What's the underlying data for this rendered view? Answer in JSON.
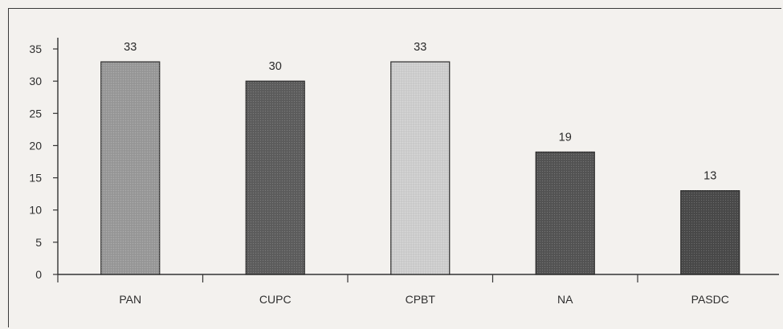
{
  "chart_data": {
    "type": "bar",
    "categories": [
      "PAN",
      "CUPC",
      "CPBT",
      "NA",
      "PASDC"
    ],
    "values": [
      33,
      30,
      33,
      19,
      13
    ],
    "data_labels": [
      "33",
      "30",
      "33",
      "19",
      "13"
    ],
    "title": "",
    "xlabel": "",
    "ylabel": "",
    "ylim": [
      0,
      35
    ],
    "yticks": [
      0,
      5,
      10,
      15,
      20,
      25,
      30,
      35
    ],
    "grid": false,
    "legend": "none",
    "bar_colors": [
      "#9a9a9a",
      "#5e5e5e",
      "#cfcfcf",
      "#555555",
      "#4a4a4a"
    ]
  }
}
